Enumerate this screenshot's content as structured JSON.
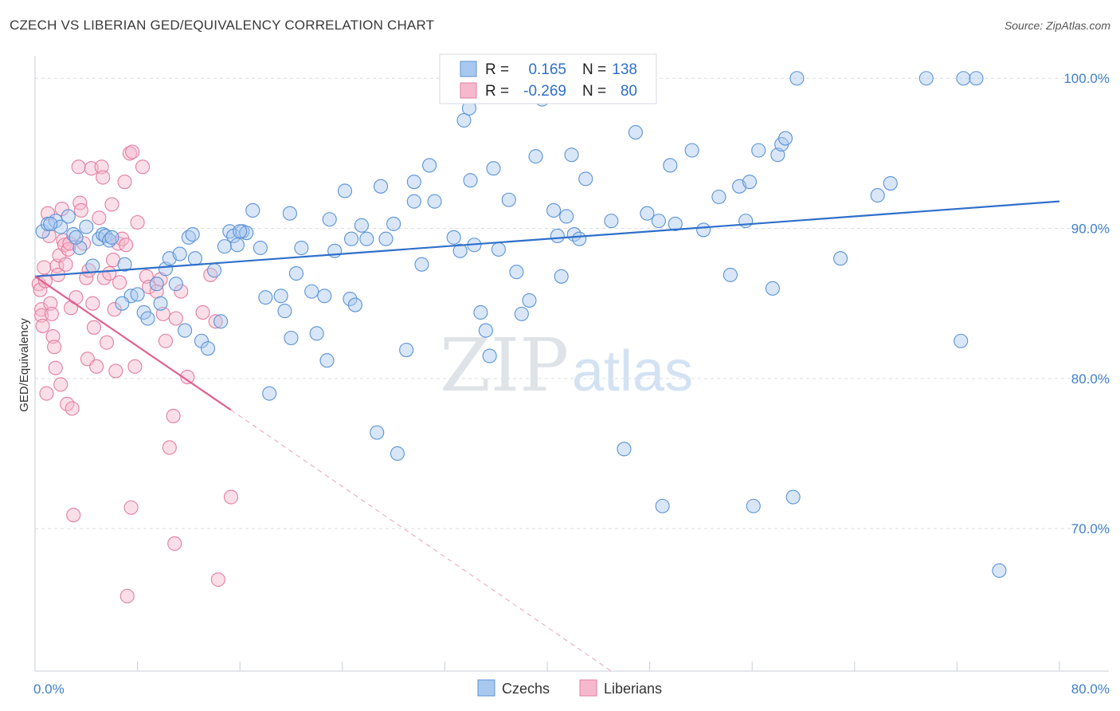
{
  "title": "CZECH VS LIBERIAN GED/EQUIVALENCY CORRELATION CHART",
  "source": "Source: ZipAtlas.com",
  "watermark": {
    "zip": "ZIP",
    "atlas": "atlas"
  },
  "colors": {
    "czech_fill": "#a9c8ef",
    "czech_stroke": "#5b93d6",
    "czech_line": "#2f6fca",
    "liberian_fill": "#f6b8cc",
    "liberian_stroke": "#e37ea0",
    "liberian_line": "#e0608f",
    "axis_text": "#3f7fcc",
    "grid": "#d9dde3"
  },
  "legend": {
    "rows": [
      {
        "r_label": "R =",
        "r_value": "0.165",
        "n_label": "N =",
        "n_value": "138"
      },
      {
        "r_label": "R =",
        "r_value": "-0.269",
        "n_label": "N =",
        "n_value": "80"
      }
    ]
  },
  "bottom_legend": {
    "czech": "Czechs",
    "liberian": "Liberians"
  },
  "chart_data": {
    "type": "scatter",
    "xlabel": "",
    "ylabel": "GED/Equivalency",
    "xlim": [
      0,
      80
    ],
    "ylim": [
      60.5,
      101.5
    ],
    "x_tick_labels": {
      "min": "0.0%",
      "max": "80.0%"
    },
    "y_ticks": [
      {
        "value": 70,
        "label": "70.0%"
      },
      {
        "value": 80,
        "label": "80.0%"
      },
      {
        "value": 90,
        "label": "90.0%"
      },
      {
        "value": 100,
        "label": "100.0%"
      }
    ],
    "grid": true,
    "legend_position": "top-center",
    "series": [
      {
        "name": "Czechs",
        "r": 0.165,
        "n": 138,
        "trend": {
          "x": [
            0,
            80
          ],
          "y": [
            86.8,
            91.8
          ]
        },
        "points": [
          [
            0.6,
            89.8
          ],
          [
            1.0,
            90.3
          ],
          [
            1.6,
            90.5
          ],
          [
            2.0,
            90.1
          ],
          [
            2.6,
            90.8
          ],
          [
            3.0,
            89.6
          ],
          [
            3.5,
            88.7
          ],
          [
            4.0,
            90.1
          ],
          [
            4.5,
            87.5
          ],
          [
            5.0,
            89.3
          ],
          [
            5.3,
            89.6
          ],
          [
            5.5,
            89.5
          ],
          [
            5.8,
            89.2
          ],
          [
            6.0,
            89.4
          ],
          [
            7.0,
            87.6
          ],
          [
            7.5,
            85.5
          ],
          [
            8.0,
            85.6
          ],
          [
            8.5,
            84.4
          ],
          [
            8.8,
            84.0
          ],
          [
            9.5,
            86.3
          ],
          [
            9.8,
            85.0
          ],
          [
            10.2,
            87.3
          ],
          [
            10.5,
            88.0
          ],
          [
            11.0,
            86.3
          ],
          [
            11.3,
            88.3
          ],
          [
            11.7,
            83.2
          ],
          [
            12.0,
            89.4
          ],
          [
            12.5,
            88.0
          ],
          [
            13.0,
            82.5
          ],
          [
            13.5,
            82.0
          ],
          [
            14.0,
            87.2
          ],
          [
            14.5,
            83.8
          ],
          [
            14.8,
            88.8
          ],
          [
            15.2,
            89.8
          ],
          [
            15.5,
            89.5
          ],
          [
            15.8,
            88.9
          ],
          [
            16.2,
            89.8
          ],
          [
            16.5,
            89.7
          ],
          [
            17.0,
            91.2
          ],
          [
            17.6,
            88.7
          ],
          [
            18.0,
            85.4
          ],
          [
            18.3,
            79.0
          ],
          [
            19.2,
            85.5
          ],
          [
            19.5,
            84.5
          ],
          [
            19.9,
            91.0
          ],
          [
            20.4,
            87.0
          ],
          [
            20.8,
            88.7
          ],
          [
            21.6,
            85.8
          ],
          [
            22.0,
            83.0
          ],
          [
            22.6,
            85.5
          ],
          [
            22.8,
            81.2
          ],
          [
            23.0,
            90.6
          ],
          [
            23.4,
            88.5
          ],
          [
            24.2,
            92.5
          ],
          [
            24.6,
            85.3
          ],
          [
            25.0,
            84.9
          ],
          [
            25.5,
            90.2
          ],
          [
            25.9,
            89.3
          ],
          [
            26.7,
            76.4
          ],
          [
            27.0,
            92.8
          ],
          [
            27.4,
            89.3
          ],
          [
            28.0,
            90.3
          ],
          [
            28.3,
            75.0
          ],
          [
            29.0,
            81.9
          ],
          [
            29.6,
            93.1
          ],
          [
            30.2,
            87.6
          ],
          [
            30.8,
            94.2
          ],
          [
            31.2,
            91.8
          ],
          [
            32.7,
            89.4
          ],
          [
            33.5,
            97.2
          ],
          [
            33.9,
            98.0
          ],
          [
            34.0,
            93.2
          ],
          [
            34.3,
            88.9
          ],
          [
            34.8,
            84.4
          ],
          [
            35.2,
            83.2
          ],
          [
            35.5,
            81.5
          ],
          [
            35.8,
            94.0
          ],
          [
            36.2,
            88.6
          ],
          [
            37.0,
            91.9
          ],
          [
            37.6,
            87.1
          ],
          [
            38.0,
            84.3
          ],
          [
            38.6,
            85.2
          ],
          [
            39.1,
            94.8
          ],
          [
            39.6,
            98.6
          ],
          [
            40.5,
            91.2
          ],
          [
            40.8,
            89.5
          ],
          [
            41.1,
            86.8
          ],
          [
            41.5,
            90.8
          ],
          [
            41.9,
            94.9
          ],
          [
            42.1,
            89.6
          ],
          [
            42.5,
            89.3
          ],
          [
            43.0,
            93.3
          ],
          [
            43.7,
            100.0
          ],
          [
            45.0,
            90.5
          ],
          [
            46.0,
            75.3
          ],
          [
            46.9,
            96.4
          ],
          [
            47.8,
            91.0
          ],
          [
            48.7,
            90.5
          ],
          [
            49.0,
            71.5
          ],
          [
            49.6,
            94.2
          ],
          [
            50.0,
            90.3
          ],
          [
            51.3,
            95.2
          ],
          [
            52.2,
            89.9
          ],
          [
            53.4,
            92.1
          ],
          [
            54.3,
            86.9
          ],
          [
            55.0,
            92.8
          ],
          [
            55.5,
            90.5
          ],
          [
            55.8,
            93.1
          ],
          [
            56.1,
            71.5
          ],
          [
            56.5,
            95.2
          ],
          [
            57.6,
            86.0
          ],
          [
            58.0,
            94.9
          ],
          [
            58.3,
            95.6
          ],
          [
            58.6,
            96.0
          ],
          [
            59.2,
            72.1
          ],
          [
            59.5,
            100.0
          ],
          [
            62.9,
            88.0
          ],
          [
            65.8,
            92.2
          ],
          [
            66.8,
            93.0
          ],
          [
            69.6,
            100.0
          ],
          [
            72.3,
            82.5
          ],
          [
            72.5,
            100.0
          ],
          [
            73.5,
            100.0
          ],
          [
            75.3,
            67.2
          ],
          [
            1.2,
            90.3
          ],
          [
            3.2,
            89.4
          ],
          [
            6.8,
            85.0
          ],
          [
            12.3,
            89.6
          ],
          [
            16.0,
            89.8
          ],
          [
            20.0,
            82.7
          ],
          [
            24.7,
            89.3
          ],
          [
            29.6,
            91.8
          ],
          [
            33.2,
            88.5
          ]
        ]
      },
      {
        "name": "Liberians",
        "r": -0.269,
        "n": 80,
        "trend": {
          "x": [
            0,
            15.3
          ],
          "y": [
            86.8,
            77.9
          ]
        },
        "trend_extension": {
          "x": [
            15.3,
            45
          ],
          "y": [
            77.9,
            60.5
          ]
        },
        "points": [
          [
            0.3,
            86.3
          ],
          [
            0.4,
            85.9
          ],
          [
            0.5,
            84.6
          ],
          [
            0.5,
            84.2
          ],
          [
            0.6,
            83.5
          ],
          [
            0.7,
            87.4
          ],
          [
            0.8,
            86.5
          ],
          [
            0.9,
            79.0
          ],
          [
            1.0,
            91.0
          ],
          [
            1.1,
            89.5
          ],
          [
            1.2,
            85.0
          ],
          [
            1.3,
            84.3
          ],
          [
            1.4,
            82.8
          ],
          [
            1.5,
            82.1
          ],
          [
            1.6,
            80.7
          ],
          [
            1.7,
            87.5
          ],
          [
            1.8,
            86.9
          ],
          [
            1.9,
            88.2
          ],
          [
            2.0,
            79.6
          ],
          [
            2.1,
            91.3
          ],
          [
            2.2,
            89.2
          ],
          [
            2.3,
            88.9
          ],
          [
            2.4,
            87.6
          ],
          [
            2.5,
            78.3
          ],
          [
            2.6,
            88.6
          ],
          [
            2.7,
            89.0
          ],
          [
            2.8,
            84.7
          ],
          [
            2.9,
            78.0
          ],
          [
            3.0,
            70.9
          ],
          [
            3.2,
            85.4
          ],
          [
            3.4,
            94.1
          ],
          [
            3.5,
            91.7
          ],
          [
            3.6,
            91.2
          ],
          [
            3.8,
            89.0
          ],
          [
            4.0,
            86.7
          ],
          [
            4.1,
            81.3
          ],
          [
            4.2,
            87.2
          ],
          [
            4.4,
            94.0
          ],
          [
            4.5,
            85.0
          ],
          [
            4.6,
            83.4
          ],
          [
            4.8,
            80.8
          ],
          [
            5.0,
            90.7
          ],
          [
            5.2,
            94.1
          ],
          [
            5.3,
            93.4
          ],
          [
            5.4,
            86.7
          ],
          [
            5.6,
            82.4
          ],
          [
            5.8,
            87.0
          ],
          [
            6.0,
            91.6
          ],
          [
            6.1,
            87.9
          ],
          [
            6.2,
            84.6
          ],
          [
            6.3,
            80.5
          ],
          [
            6.5,
            89.0
          ],
          [
            6.6,
            86.4
          ],
          [
            6.8,
            89.3
          ],
          [
            7.0,
            93.1
          ],
          [
            7.1,
            88.9
          ],
          [
            7.2,
            65.5
          ],
          [
            7.4,
            95.0
          ],
          [
            7.5,
            71.4
          ],
          [
            7.6,
            95.1
          ],
          [
            7.8,
            80.8
          ],
          [
            8.0,
            90.4
          ],
          [
            8.4,
            94.1
          ],
          [
            8.7,
            86.8
          ],
          [
            8.9,
            86.1
          ],
          [
            9.5,
            85.8
          ],
          [
            9.8,
            86.6
          ],
          [
            10.0,
            84.3
          ],
          [
            10.2,
            82.5
          ],
          [
            10.5,
            75.4
          ],
          [
            10.8,
            77.5
          ],
          [
            10.9,
            69.0
          ],
          [
            11.0,
            84.0
          ],
          [
            11.4,
            85.8
          ],
          [
            11.9,
            80.1
          ],
          [
            13.1,
            84.4
          ],
          [
            13.7,
            86.9
          ],
          [
            14.1,
            83.8
          ],
          [
            14.3,
            66.6
          ],
          [
            15.3,
            72.1
          ]
        ]
      }
    ]
  }
}
